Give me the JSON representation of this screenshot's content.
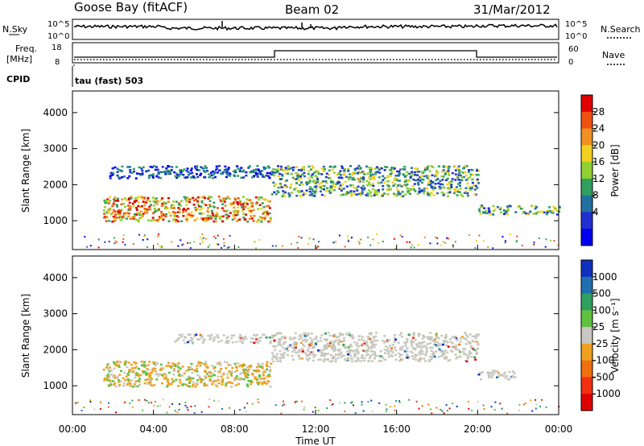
{
  "header": {
    "station": "Goose Bay (fitACF)",
    "beam": "Beam 02",
    "date": "31/Mar/2012"
  },
  "strips": {
    "nsky_label": "N.Sky",
    "nsky_top": "10^5",
    "nsky_bottom": "10^0",
    "nsearch_label": "N.Search",
    "freq_label": "Freq.",
    "freq_unit": "[MHz]",
    "freq_top": "18",
    "freq_bottom": "8",
    "nave_top": "60",
    "nave_bottom": "0",
    "nave_label": "Nave",
    "cpid_label": "CPID",
    "cpid_value": "tau (fast) 503"
  },
  "chart_data": [
    {
      "type": "heatmap",
      "title": "",
      "ylabel": "Slant Range [km]",
      "ylim": [
        200,
        4600
      ],
      "yticks": [
        "1000",
        "2000",
        "3000",
        "4000"
      ],
      "xlim": [
        0,
        24
      ],
      "colorbar": {
        "label": "Power [dB]",
        "ticks": [
          "28",
          "24",
          "20",
          "16",
          "12",
          "8",
          "4"
        ],
        "colors": [
          "#e00000",
          "#f05010",
          "#f09020",
          "#f0d020",
          "#90d030",
          "#30a060",
          "#2070a0",
          "#2030d0",
          "#0000f0"
        ]
      },
      "bands": [
        {
          "t0": 1.5,
          "t1": 9.8,
          "r0": 1000,
          "r1": 1700,
          "level": "high"
        },
        {
          "t0": 1.8,
          "t1": 9.8,
          "r0": 2200,
          "r1": 2550,
          "level": "low"
        },
        {
          "t0": 9.8,
          "t1": 20.0,
          "r0": 1700,
          "r1": 2550,
          "level": "mid"
        },
        {
          "t0": 20.0,
          "t1": 24.0,
          "r0": 1200,
          "r1": 1450,
          "level": "mid"
        }
      ]
    },
    {
      "type": "heatmap",
      "title": "",
      "xlabel": "Time UT",
      "ylabel": "Slant Range [km]",
      "ylim": [
        200,
        4600
      ],
      "yticks": [
        "1000",
        "2000",
        "3000",
        "4000"
      ],
      "xlim": [
        0,
        24
      ],
      "xticks": [
        "00:00",
        "04:00",
        "08:00",
        "12:00",
        "16:00",
        "20:00",
        "00:00"
      ],
      "colorbar": {
        "label": "Velocity [m s⁻¹]",
        "ticks": [
          "1000",
          "500",
          "100",
          "25",
          "-25",
          "-100",
          "-500",
          "-1000"
        ],
        "colors": [
          "#1030c0",
          "#2070b0",
          "#30a060",
          "#60c040",
          "#c8c8c0",
          "#f0a020",
          "#f07010",
          "#f03010",
          "#e00000"
        ]
      },
      "bands": [
        {
          "t0": 1.5,
          "t1": 9.8,
          "r0": 1000,
          "r1": 1700,
          "level": "neg"
        },
        {
          "t0": 5.0,
          "t1": 9.8,
          "r0": 2200,
          "r1": 2450,
          "level": "gray"
        },
        {
          "t0": 9.8,
          "t1": 20.0,
          "r0": 1700,
          "r1": 2500,
          "level": "gray"
        },
        {
          "t0": 20.0,
          "t1": 21.8,
          "r0": 1200,
          "r1": 1450,
          "level": "gray"
        }
      ]
    }
  ]
}
